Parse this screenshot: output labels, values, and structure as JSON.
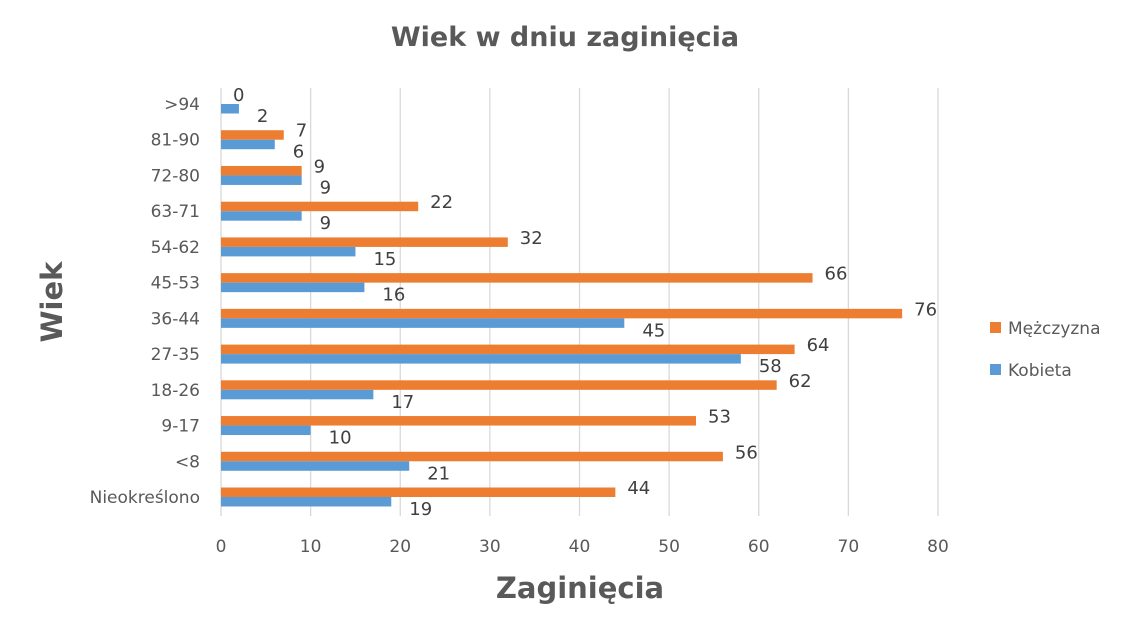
{
  "chart_data": {
    "type": "bar",
    "orientation": "horizontal",
    "title": "Wiek w dniu zaginięcia",
    "xlabel": "Zaginięcia",
    "ylabel": "Wiek",
    "xlim": [
      0,
      80
    ],
    "xticks": [
      "0",
      "10",
      "20",
      "30",
      "40",
      "50",
      "60",
      "70",
      "80"
    ],
    "grid": true,
    "legend_position": "right",
    "categories": [
      ">94",
      "81-90",
      "72-80",
      "63-71",
      "54-62",
      "45-53",
      "36-44",
      "27-35",
      "18-26",
      "9-17",
      "<8",
      "Nieokreślono"
    ],
    "series": [
      {
        "name": "Mężczyzna",
        "color": "#ED7D31",
        "values": [
          0,
          7,
          9,
          22,
          32,
          66,
          76,
          64,
          62,
          53,
          56,
          44
        ]
      },
      {
        "name": "Kobieta",
        "color": "#5B9BD5",
        "values": [
          2,
          6,
          9,
          9,
          15,
          16,
          45,
          58,
          17,
          10,
          21,
          19
        ]
      }
    ]
  }
}
